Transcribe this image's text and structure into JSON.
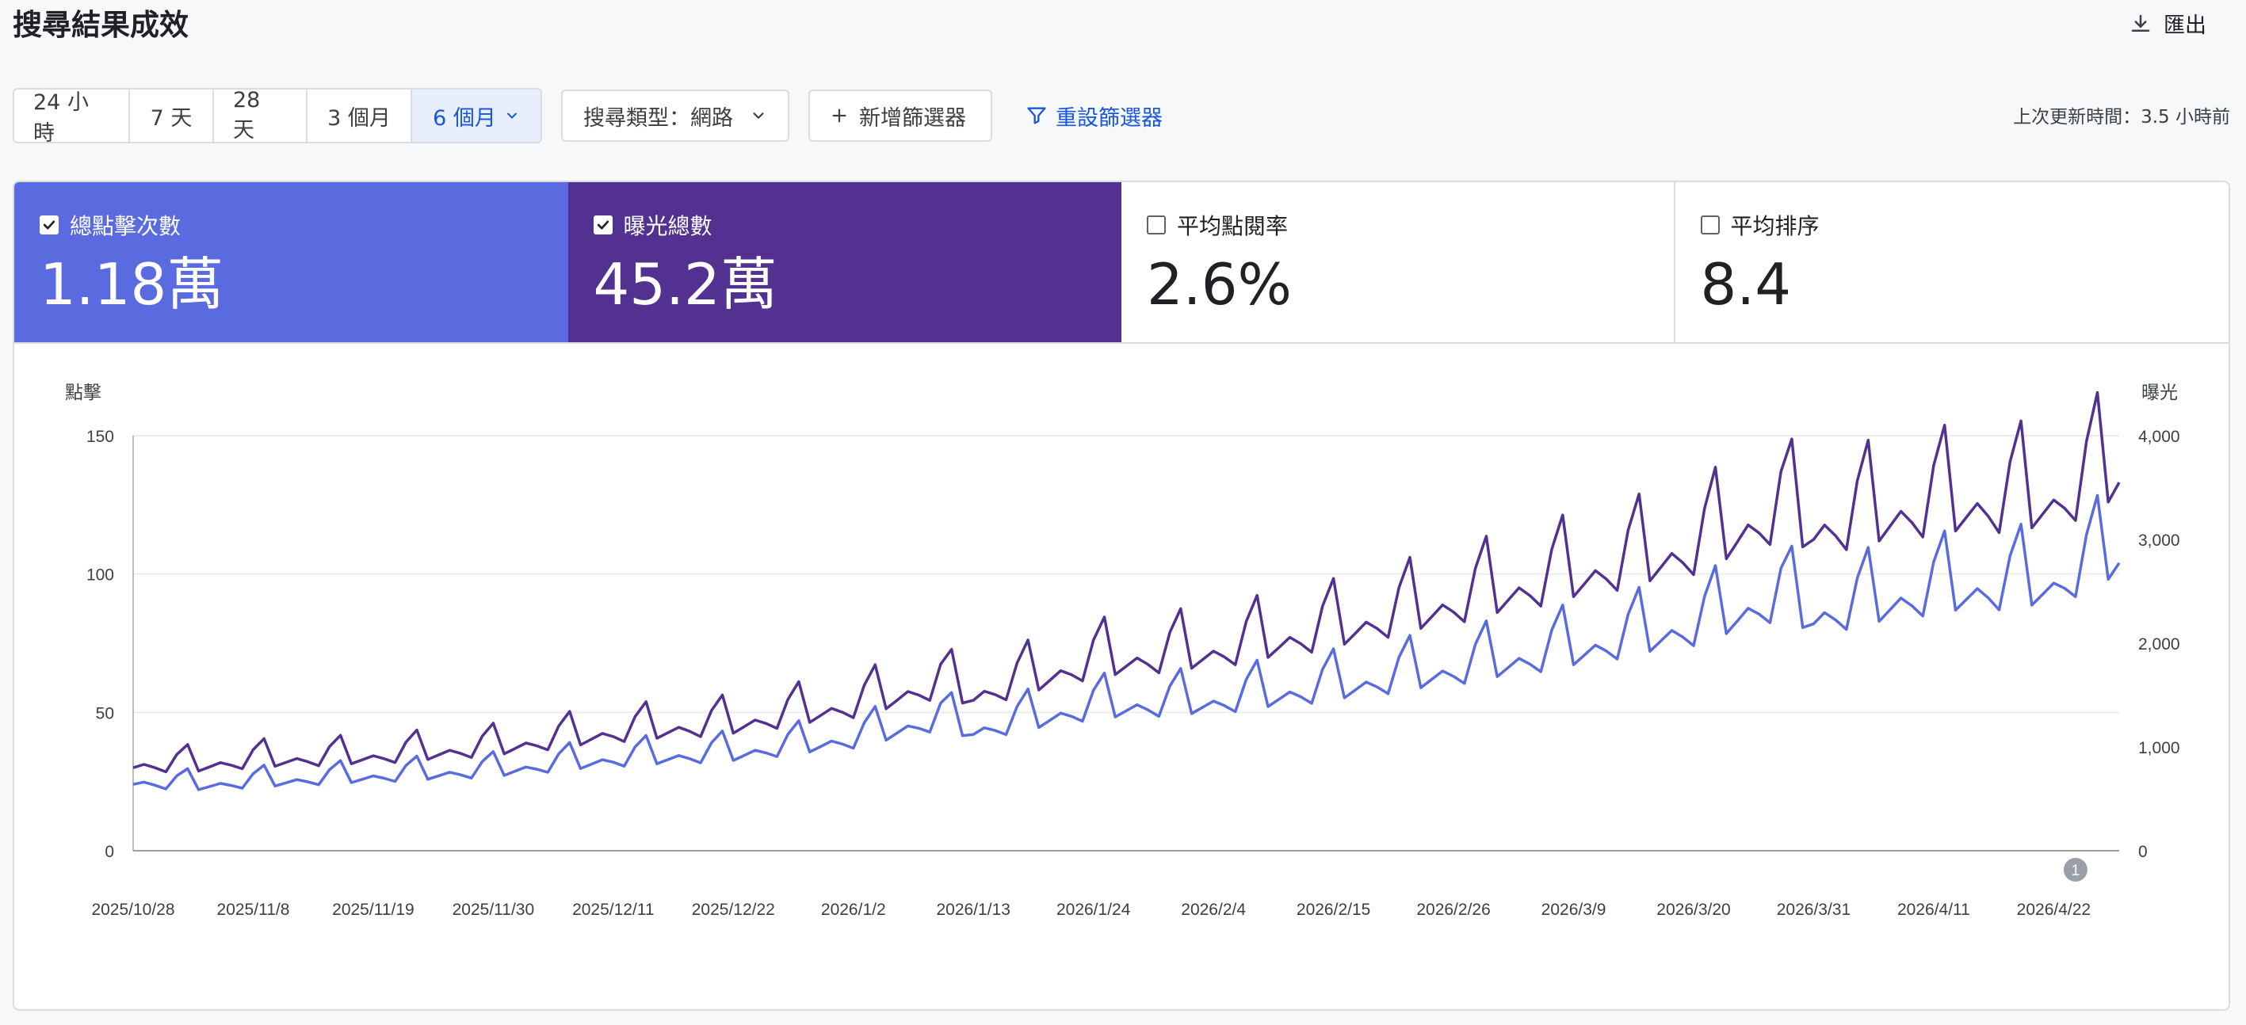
{
  "header": {
    "title": "搜尋結果成效",
    "export_label": "匯出"
  },
  "toolbar": {
    "ranges": [
      "24 小時",
      "7 天",
      "28 天",
      "3 個月",
      "6 個月"
    ],
    "search_type": "搜尋類型：網路",
    "add_filter": "新增篩選器",
    "reset_filter": "重設篩選器",
    "last_updated": "上次更新時間：3.5 小時前"
  },
  "metrics": [
    {
      "label": "總點擊次數",
      "value": "1.18萬",
      "checked": true
    },
    {
      "label": "曝光總數",
      "value": "45.2萬",
      "checked": true
    },
    {
      "label": "平均點閱率",
      "value": "2.6%",
      "checked": false
    },
    {
      "label": "平均排序",
      "value": "8.4",
      "checked": false
    }
  ],
  "colors": {
    "clicks": "#5a6be0",
    "impressions": "#523190",
    "accent": "#1a56db"
  },
  "annotation_label": "1",
  "chart_data": {
    "type": "line",
    "left_axis": {
      "label": "點擊",
      "range": [
        0,
        150
      ],
      "ticks": [
        "0",
        "50",
        "100",
        "150"
      ]
    },
    "right_axis": {
      "label": "曝光",
      "range": [
        0,
        4000
      ],
      "ticks": [
        "0",
        "1,000",
        "2,000",
        "3,000",
        "4,000"
      ]
    },
    "x_tick_labels": [
      "2025/10/28",
      "2025/11/8",
      "2025/11/19",
      "2025/11/30",
      "2025/12/11",
      "2025/12/22",
      "2026/1/2",
      "2026/1/13",
      "2026/1/24",
      "2026/2/4",
      "2026/2/15",
      "2026/2/26",
      "2026/3/9",
      "2026/3/20",
      "2026/3/31",
      "2026/4/11",
      "2026/4/22"
    ],
    "x_start": "2025/10/28",
    "x_end": "2026/4/28",
    "grid": true,
    "series": [
      {
        "axis": "left",
        "color": "#5a6be0",
        "anchors": [
          [
            "2025/10/28",
            24
          ],
          [
            "2025/11/3",
            23
          ],
          [
            "2025/11/8",
            24
          ],
          [
            "2025/11/19",
            26
          ],
          [
            "2025/11/30",
            28
          ],
          [
            "2025/12/11",
            32
          ],
          [
            "2025/12/22",
            34
          ],
          [
            "2026/1/2",
            39
          ],
          [
            "2026/1/10",
            46
          ],
          [
            "2026/1/13",
            42
          ],
          [
            "2026/1/24",
            50
          ],
          [
            "2026/2/4",
            52
          ],
          [
            "2026/2/15",
            57
          ],
          [
            "2026/2/26",
            63
          ],
          [
            "2026/3/9",
            70
          ],
          [
            "2026/3/20",
            78
          ],
          [
            "2026/3/28",
            88
          ],
          [
            "2026/3/31",
            82
          ],
          [
            "2026/4/11",
            90
          ],
          [
            "2026/4/22",
            93
          ],
          [
            "2026/4/28",
            104
          ]
        ]
      },
      {
        "axis": "right",
        "color": "#523190",
        "anchors": [
          [
            "2025/10/28",
            800
          ],
          [
            "2025/11/3",
            800
          ],
          [
            "2025/11/8",
            840
          ],
          [
            "2025/11/19",
            880
          ],
          [
            "2025/11/30",
            960
          ],
          [
            "2025/12/11",
            1100
          ],
          [
            "2025/12/22",
            1180
          ],
          [
            "2026/1/2",
            1350
          ],
          [
            "2026/1/10",
            1550
          ],
          [
            "2026/1/13",
            1450
          ],
          [
            "2026/1/24",
            1750
          ],
          [
            "2026/2/4",
            1850
          ],
          [
            "2026/2/15",
            2050
          ],
          [
            "2026/2/26",
            2300
          ],
          [
            "2026/3/9",
            2550
          ],
          [
            "2026/3/20",
            2800
          ],
          [
            "2026/3/28",
            3150
          ],
          [
            "2026/3/31",
            3000
          ],
          [
            "2026/4/11",
            3200
          ],
          [
            "2026/4/22",
            3250
          ],
          [
            "2026/4/28",
            3550
          ]
        ]
      }
    ],
    "annotation": {
      "date": "2026/4/24"
    }
  }
}
